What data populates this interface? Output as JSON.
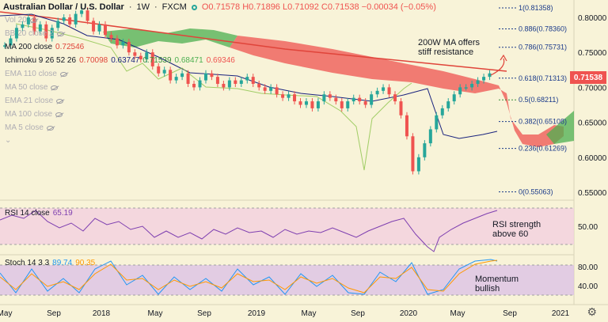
{
  "header": {
    "symbol": "Australian Dollar / U.S. Dollar",
    "timeframe": "1W",
    "exchange": "FXCM",
    "ohlc": "O0.71578 H0.71896 L0.71092 C0.71538 −0.00034 (−0.05%)"
  },
  "indicators": [
    {
      "label": "Vol 20",
      "active": false
    },
    {
      "label": "BB 20 close 2",
      "active": false
    },
    {
      "label": "MA 200 close",
      "value": "0.72546",
      "active": true
    },
    {
      "label": "Ichimoku 9 26 52 26",
      "values": [
        "0.70098",
        "0.63747",
        "0.71539",
        "0.68471",
        "0.69346"
      ],
      "active": true
    },
    {
      "label": "EMA 110 close",
      "active": false
    },
    {
      "label": "MA 50 close",
      "active": false
    },
    {
      "label": "EMA 21 close",
      "active": false
    },
    {
      "label": "MA 100 close",
      "active": false
    },
    {
      "label": "MA 5 close",
      "active": false
    }
  ],
  "price_tag": "0.71538",
  "price_axis": [
    "0.80000",
    "0.75000",
    "0.70000",
    "0.65000",
    "0.60000",
    "0.55000"
  ],
  "fib_levels": [
    {
      "label": "1(0.81358)",
      "price": 0.81358,
      "color": "#1a3a8a"
    },
    {
      "label": "0.886(0.78360)",
      "price": 0.7836,
      "color": "#1a3a8a"
    },
    {
      "label": "0.786(0.75731)",
      "price": 0.75731,
      "color": "#1a3a8a"
    },
    {
      "label": "0.618(0.71313)",
      "price": 0.71313,
      "color": "#1a3a8a"
    },
    {
      "label": "0.5(0.68211)",
      "price": 0.68211,
      "color": "#388e3c"
    },
    {
      "label": "0.382(0.65108)",
      "price": 0.65108,
      "color": "#1a3a8a"
    },
    {
      "label": "0.236(0.61269)",
      "price": 0.61269,
      "color": "#1a3a8a"
    },
    {
      "label": "0(0.55063)",
      "price": 0.55063,
      "color": "#1a3a8a"
    }
  ],
  "annotations": {
    "ma_note_line1": "200W MA offers",
    "ma_note_line2": "stiff resistance",
    "rsi_note_line1": "RSI strength",
    "rsi_note_line2": "above 60",
    "stoch_note_line1": "Momentum",
    "stoch_note_line2": "bullish"
  },
  "rsi": {
    "label": "RSI 14 close",
    "value": "65.19",
    "axis": [
      "50.00"
    ]
  },
  "stoch": {
    "label": "Stoch 14 3 3",
    "k": "89.74",
    "d": "90.35",
    "axis": [
      "80.00",
      "40.00"
    ]
  },
  "time_axis": [
    "May",
    "Sep",
    "2018",
    "May",
    "Sep",
    "2019",
    "May",
    "Sep",
    "2020",
    "May",
    "Sep",
    "2021"
  ],
  "colors": {
    "background": "#f8f3d8",
    "bull": "#26a69a",
    "bear": "#ef5350",
    "ma200": "#e0443a",
    "cloud_bear": "#ef5350",
    "cloud_bull": "#4caf50",
    "rsi_band": "#f3cfe0",
    "rsi_line": "#7e3fb0",
    "stoch_k": "#2196f3",
    "stoch_d": "#ff9800"
  }
}
